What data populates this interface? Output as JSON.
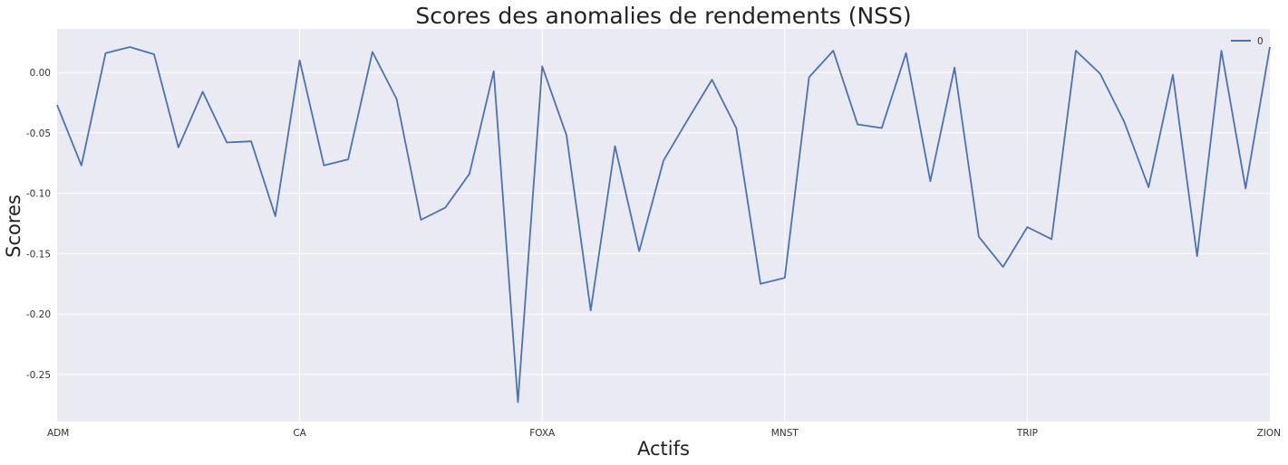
{
  "chart_data": {
    "type": "line",
    "title": "Scores des anomalies de rendements (NSS)",
    "xlabel": "Actifs",
    "ylabel": "Scores",
    "categories_labeled": [
      "ADM",
      "CA",
      "FOXA",
      "MNST",
      "TRIP",
      "ZION"
    ],
    "x_label_index_step": 10,
    "ylim": [
      -0.289,
      0.036
    ],
    "yticks": [
      0.0,
      -0.05,
      -0.1,
      -0.15,
      -0.2,
      -0.25
    ],
    "ytick_labels": [
      "0.00",
      "-0.05",
      "-0.10",
      "-0.15",
      "-0.20",
      "-0.25"
    ],
    "grid": true,
    "legend_position": "top-right",
    "series": [
      {
        "name": "0",
        "color": "#4c72b0",
        "values": [
          -0.027,
          -0.077,
          0.016,
          0.021,
          0.015,
          -0.062,
          -0.016,
          -0.058,
          -0.057,
          -0.119,
          0.01,
          -0.077,
          -0.072,
          0.017,
          -0.022,
          -0.122,
          -0.112,
          -0.084,
          0.001,
          -0.273,
          0.005,
          -0.052,
          -0.197,
          -0.061,
          -0.148,
          -0.073,
          -0.039,
          -0.006,
          -0.046,
          -0.175,
          -0.17,
          -0.004,
          0.018,
          -0.043,
          -0.046,
          0.016,
          -0.09,
          0.004,
          -0.136,
          -0.161,
          -0.128,
          -0.138,
          0.018,
          -0.001,
          -0.041,
          -0.095,
          -0.002,
          -0.152,
          0.018,
          -0.096,
          0.021
        ]
      }
    ]
  },
  "colors": {
    "plot_background": "#eaeaf2",
    "grid": "#ffffff",
    "line": "#4c72b0"
  }
}
